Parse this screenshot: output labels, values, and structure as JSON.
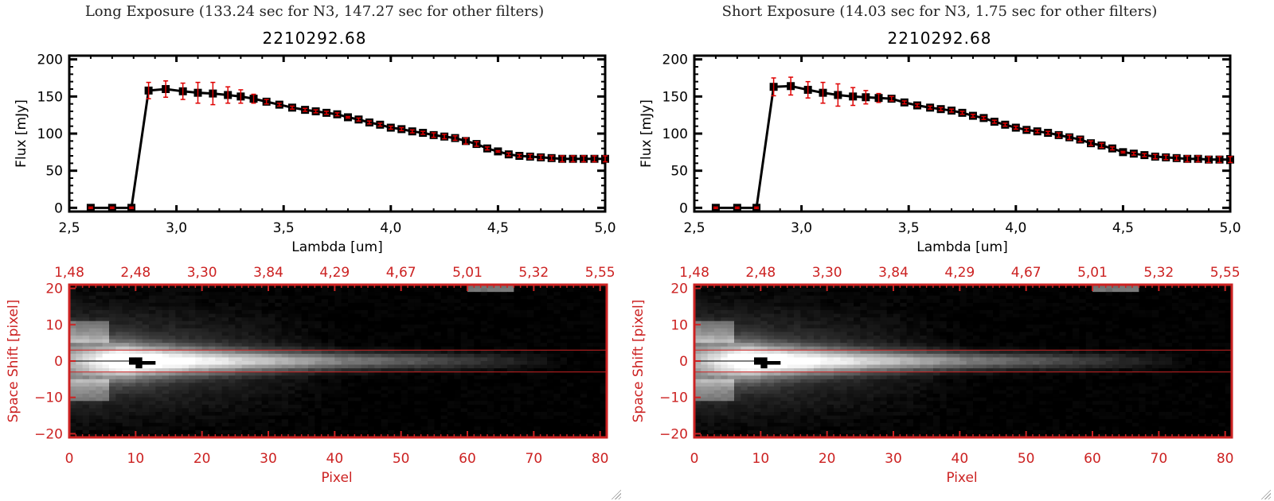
{
  "panels": [
    {
      "title": "Long Exposure (133.24 sec for N3, 147.27 sec for other filters)",
      "object_id": "2210292.68"
    },
    {
      "title": "Short Exposure (14.03 sec for N3, 1.75 sec for other filters)",
      "object_id": "2210292.68"
    }
  ],
  "colors": {
    "axis": "#000000",
    "error": "#e00000",
    "image_axis": "#cc2222"
  },
  "chart_data": [
    {
      "type": "line",
      "title": "2210292.68",
      "xlabel": "Lambda [um]",
      "ylabel": "Flux [mJy]",
      "xlim": [
        2.5,
        5.0
      ],
      "ylim": [
        -5,
        205
      ],
      "xticks": [
        "2.5",
        "3.0",
        "3.5",
        "4.0",
        "4.5",
        "5.0"
      ],
      "yticks": [
        "0",
        "50",
        "100",
        "150",
        "200"
      ],
      "series": [
        {
          "name": "Long Exposure",
          "x": [
            2.6,
            2.7,
            2.79,
            2.87,
            2.95,
            3.03,
            3.1,
            3.17,
            3.24,
            3.3,
            3.36,
            3.42,
            3.48,
            3.54,
            3.6,
            3.65,
            3.7,
            3.75,
            3.8,
            3.85,
            3.9,
            3.95,
            4.0,
            4.05,
            4.1,
            4.15,
            4.2,
            4.25,
            4.3,
            4.35,
            4.4,
            4.45,
            4.5,
            4.55,
            4.6,
            4.65,
            4.7,
            4.75,
            4.8,
            4.85,
            4.9,
            4.95,
            5.0
          ],
          "y": [
            0,
            0,
            0,
            158,
            160,
            157,
            155,
            154,
            152,
            150,
            147,
            143,
            139,
            135,
            132,
            130,
            128,
            126,
            122,
            119,
            115,
            112,
            108,
            106,
            103,
            101,
            98,
            96,
            94,
            90,
            86,
            80,
            76,
            72,
            70,
            69,
            68,
            67,
            66,
            66,
            66,
            66,
            66
          ],
          "err": [
            1,
            1,
            1,
            11,
            11,
            11,
            14,
            15,
            11,
            9,
            6,
            3,
            2,
            2,
            2,
            2,
            2,
            2,
            1,
            2,
            2,
            2,
            2,
            2,
            2,
            2,
            3,
            3,
            3,
            4,
            3,
            2,
            1,
            2,
            2,
            3,
            3,
            3,
            4,
            4,
            4,
            4,
            4
          ]
        }
      ]
    },
    {
      "type": "line",
      "title": "2210292.68",
      "xlabel": "Lambda [um]",
      "ylabel": "Flux [mJy]",
      "xlim": [
        2.5,
        5.0
      ],
      "ylim": [
        -5,
        205
      ],
      "xticks": [
        "2.5",
        "3.0",
        "3.5",
        "4.0",
        "4.5",
        "5.0"
      ],
      "yticks": [
        "0",
        "50",
        "100",
        "150",
        "200"
      ],
      "series": [
        {
          "name": "Short Exposure",
          "x": [
            2.6,
            2.7,
            2.79,
            2.87,
            2.95,
            3.03,
            3.1,
            3.17,
            3.24,
            3.3,
            3.36,
            3.42,
            3.48,
            3.54,
            3.6,
            3.65,
            3.7,
            3.75,
            3.8,
            3.85,
            3.9,
            3.95,
            4.0,
            4.05,
            4.1,
            4.15,
            4.2,
            4.25,
            4.3,
            4.35,
            4.4,
            4.45,
            4.5,
            4.55,
            4.6,
            4.65,
            4.7,
            4.75,
            4.8,
            4.85,
            4.9,
            4.95,
            5.0
          ],
          "y": [
            0,
            0,
            0,
            163,
            164,
            159,
            155,
            152,
            150,
            149,
            148,
            147,
            142,
            138,
            135,
            133,
            131,
            128,
            124,
            121,
            116,
            112,
            108,
            105,
            103,
            101,
            98,
            95,
            92,
            87,
            84,
            80,
            75,
            73,
            71,
            69,
            68,
            67,
            66,
            66,
            65,
            65,
            65
          ],
          "err": [
            1,
            1,
            1,
            12,
            12,
            11,
            14,
            15,
            12,
            9,
            6,
            3,
            2,
            2,
            2,
            2,
            2,
            2,
            2,
            2,
            2,
            2,
            2,
            2,
            2,
            2,
            3,
            3,
            3,
            3,
            3,
            2,
            1,
            2,
            2,
            3,
            3,
            3,
            4,
            4,
            4,
            4,
            4
          ]
        }
      ]
    },
    {
      "type": "heatmap",
      "xlabel": "Pixel",
      "ylabel": "Space Shift [pixel]",
      "xlim": [
        0,
        81
      ],
      "ylim": [
        -21,
        21
      ],
      "xticks": [
        "0",
        "10",
        "20",
        "30",
        "40",
        "50",
        "60",
        "70",
        "80"
      ],
      "yticks": [
        "-20",
        "-10",
        "0",
        "10",
        "20"
      ],
      "top_xticks": [
        "1.48",
        "2.48",
        "3.30",
        "3.84",
        "4.29",
        "4.67",
        "5.01",
        "5.32",
        "5.55"
      ],
      "aperture_lines": [
        -3,
        3
      ]
    },
    {
      "type": "heatmap",
      "xlabel": "Pixel",
      "ylabel": "Space Shift [pixel]",
      "xlim": [
        0,
        81
      ],
      "ylim": [
        -21,
        21
      ],
      "xticks": [
        "0",
        "10",
        "20",
        "30",
        "40",
        "50",
        "60",
        "70",
        "80"
      ],
      "yticks": [
        "-20",
        "-10",
        "0",
        "10",
        "20"
      ],
      "top_xticks": [
        "1.48",
        "2.48",
        "3.30",
        "3.84",
        "4.29",
        "4.67",
        "5.01",
        "5.32",
        "5.55"
      ],
      "aperture_lines": [
        -3,
        3
      ]
    }
  ]
}
